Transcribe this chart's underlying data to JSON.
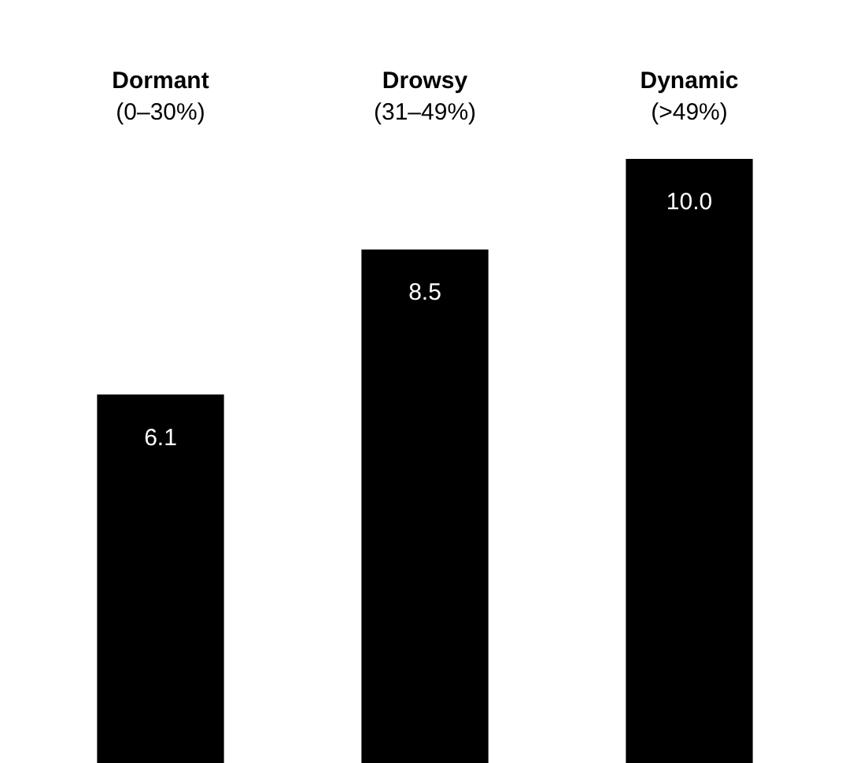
{
  "chart_data": {
    "type": "bar",
    "categories": [
      "Dormant\n(0–30%)",
      "Drowsy\n(31–49%)",
      "Dynamic\n(>49%)"
    ],
    "values": [
      6.1,
      8.5,
      10.0
    ],
    "value_labels": [
      "6.1",
      "8.5",
      "10.0"
    ],
    "color": "#000000"
  }
}
